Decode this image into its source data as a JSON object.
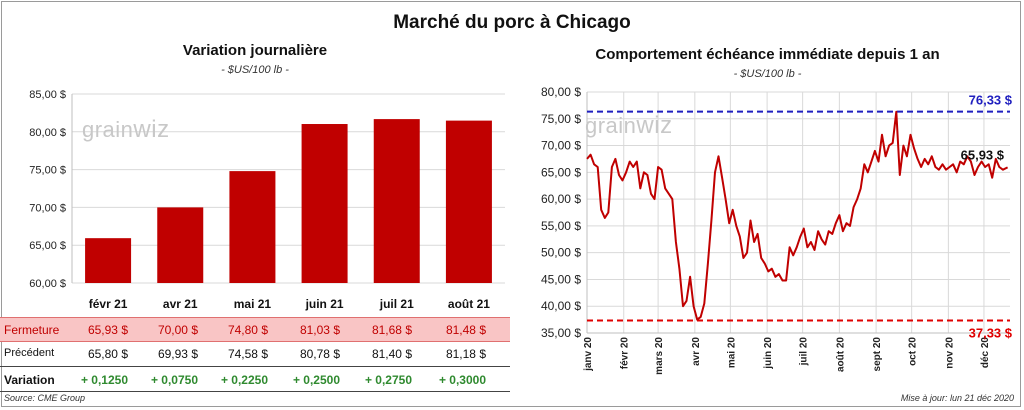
{
  "title": "Marché du porc à Chicago",
  "left": {
    "title": "Variation  journalière",
    "unit": "- $US/100 lb -"
  },
  "right": {
    "title": "Comportement  échéance immédiate depuis 1 an",
    "unit": "- $US/100 lb -"
  },
  "logo": {
    "part1": "grain",
    "part2": "wiz"
  },
  "table": {
    "rows": [
      {
        "label": "Fermeture",
        "values": [
          "65,93  $",
          "70,00  $",
          "74,80  $",
          "81,03  $",
          "81,68  $",
          "81,48  $"
        ]
      },
      {
        "label": "Précédent",
        "values": [
          "65,80  $",
          "69,93  $",
          "74,58  $",
          "80,78  $",
          "81,40  $",
          "81,18  $"
        ]
      },
      {
        "label": "Variation",
        "values": [
          "+ 0,1250",
          "+ 0,0750",
          "+ 0,2250",
          "+ 0,2500",
          "+ 0,2750",
          "+ 0,3000"
        ]
      }
    ]
  },
  "footer": {
    "source": "Source: CME Group",
    "updated": "Mise à jour: lun 21 déc 2020"
  },
  "colors": {
    "bar": "#c00000",
    "line": "#c00000",
    "max_line": "#1f1fbf",
    "min_line": "#e00000",
    "grid": "#d9d9d9"
  },
  "chart_data": [
    {
      "type": "bar",
      "categories": [
        "févr 21",
        "avr 21",
        "mai 21",
        "juin 21",
        "juil 21",
        "août 21"
      ],
      "values": [
        65.93,
        70.0,
        74.8,
        81.03,
        81.68,
        81.48
      ],
      "ylim": [
        60,
        85
      ],
      "yticks": [
        60,
        65,
        70,
        75,
        80,
        85
      ],
      "ytick_labels": [
        "60,00 $",
        "65,00 $",
        "70,00 $",
        "75,00 $",
        "80,00 $",
        "85,00 $"
      ],
      "grid": true
    },
    {
      "type": "line",
      "ylim": [
        35,
        80
      ],
      "yticks": [
        35,
        40,
        45,
        50,
        55,
        60,
        65,
        70,
        75,
        80
      ],
      "ytick_labels": [
        "35,00 $",
        "40,00 $",
        "45,00 $",
        "50,00 $",
        "55,00 $",
        "60,00 $",
        "65,00 $",
        "70,00 $",
        "75,00 $",
        "80,00 $"
      ],
      "xticks": [
        "2020-01",
        "2020-02",
        "2020-03",
        "2020-04",
        "2020-05",
        "2020-06",
        "2020-07",
        "2020-08",
        "2020-09",
        "2020-10",
        "2020-11",
        "2020-12"
      ],
      "xtick_labels": [
        "janv 20",
        "févr 20",
        "mars 20",
        "avr 20",
        "mai 20",
        "juin 20",
        "juil 20",
        "août 20",
        "sept 20",
        "oct 20",
        "nov 20",
        "déc 20"
      ],
      "x_range": [
        "2020-01-01",
        "2020-12-23"
      ],
      "reference_lines": [
        {
          "value": 76.33,
          "label": "76,33 $",
          "style": "dashed"
        },
        {
          "value": 37.33,
          "label": "37,33 $",
          "style": "dashed"
        }
      ],
      "last_label": "65,93 $",
      "grid": true,
      "series": [
        {
          "x": [
            "2020-01-01",
            "2020-01-04",
            "2020-01-07",
            "2020-01-10",
            "2020-01-13",
            "2020-01-16",
            "2020-01-19",
            "2020-01-22",
            "2020-01-25",
            "2020-01-28",
            "2020-01-31",
            "2020-02-03",
            "2020-02-06",
            "2020-02-09",
            "2020-02-12",
            "2020-02-15",
            "2020-02-18",
            "2020-02-21",
            "2020-02-24",
            "2020-02-27",
            "2020-03-01",
            "2020-03-04",
            "2020-03-07",
            "2020-03-10",
            "2020-03-13",
            "2020-03-16",
            "2020-03-19",
            "2020-03-22",
            "2020-03-25",
            "2020-03-28",
            "2020-03-31",
            "2020-04-03",
            "2020-04-06",
            "2020-04-09",
            "2020-04-12",
            "2020-04-15",
            "2020-04-18",
            "2020-04-21",
            "2020-04-24",
            "2020-04-27",
            "2020-04-30",
            "2020-05-03",
            "2020-05-06",
            "2020-05-09",
            "2020-05-12",
            "2020-05-15",
            "2020-05-18",
            "2020-05-21",
            "2020-05-24",
            "2020-05-27",
            "2020-05-30",
            "2020-06-02",
            "2020-06-05",
            "2020-06-08",
            "2020-06-11",
            "2020-06-14",
            "2020-06-17",
            "2020-06-20",
            "2020-06-23",
            "2020-06-26",
            "2020-06-29",
            "2020-07-02",
            "2020-07-05",
            "2020-07-08",
            "2020-07-11",
            "2020-07-14",
            "2020-07-17",
            "2020-07-20",
            "2020-07-23",
            "2020-07-26",
            "2020-07-29",
            "2020-08-01",
            "2020-08-04",
            "2020-08-07",
            "2020-08-10",
            "2020-08-13",
            "2020-08-16",
            "2020-08-19",
            "2020-08-22",
            "2020-08-25",
            "2020-08-28",
            "2020-08-31",
            "2020-09-03",
            "2020-09-06",
            "2020-09-09",
            "2020-09-12",
            "2020-09-15",
            "2020-09-18",
            "2020-09-21",
            "2020-09-24",
            "2020-09-27",
            "2020-09-30",
            "2020-10-03",
            "2020-10-06",
            "2020-10-09",
            "2020-10-12",
            "2020-10-15",
            "2020-10-18",
            "2020-10-21",
            "2020-10-24",
            "2020-10-27",
            "2020-10-30",
            "2020-11-02",
            "2020-11-05",
            "2020-11-08",
            "2020-11-11",
            "2020-11-14",
            "2020-11-17",
            "2020-11-20",
            "2020-11-23",
            "2020-11-26",
            "2020-11-29",
            "2020-12-02",
            "2020-12-05",
            "2020-12-08",
            "2020-12-11",
            "2020-12-14",
            "2020-12-17",
            "2020-12-21"
          ],
          "y": [
            67.5,
            68.3,
            66.5,
            66.0,
            58.0,
            56.5,
            57.5,
            66.0,
            67.5,
            64.5,
            63.5,
            65.0,
            67.0,
            66.0,
            67.0,
            62.0,
            65.0,
            64.5,
            61.0,
            60.0,
            66.0,
            65.5,
            62.0,
            61.0,
            60.0,
            52.0,
            47.0,
            40.0,
            41.0,
            45.5,
            40.0,
            37.5,
            38.0,
            40.5,
            48.0,
            56.0,
            65.0,
            68.0,
            64.0,
            60.0,
            55.5,
            58.0,
            55.0,
            53.0,
            49.0,
            50.0,
            56.0,
            52.0,
            53.5,
            49.0,
            48.0,
            46.5,
            47.0,
            45.5,
            46.0,
            44.8,
            44.8,
            51.0,
            49.5,
            51.0,
            53.0,
            54.5,
            51.0,
            52.0,
            50.5,
            54.0,
            52.5,
            51.5,
            54.0,
            53.5,
            55.5,
            57.0,
            54.0,
            55.5,
            55.0,
            58.5,
            60.0,
            62.0,
            66.5,
            65.0,
            67.0,
            69.0,
            67.0,
            72.0,
            68.0,
            70.0,
            70.5,
            76.3,
            64.5,
            70.0,
            68.0,
            72.0,
            69.5,
            67.5,
            66.0,
            67.5,
            66.5,
            68.0,
            66.0,
            65.5,
            66.5,
            65.5,
            66.0,
            66.5,
            65.0,
            67.0,
            66.5,
            68.0,
            67.0,
            64.5,
            66.0,
            67.0,
            66.0,
            66.5,
            64.0,
            67.5,
            66.0,
            65.5,
            65.93
          ]
        }
      ]
    }
  ]
}
